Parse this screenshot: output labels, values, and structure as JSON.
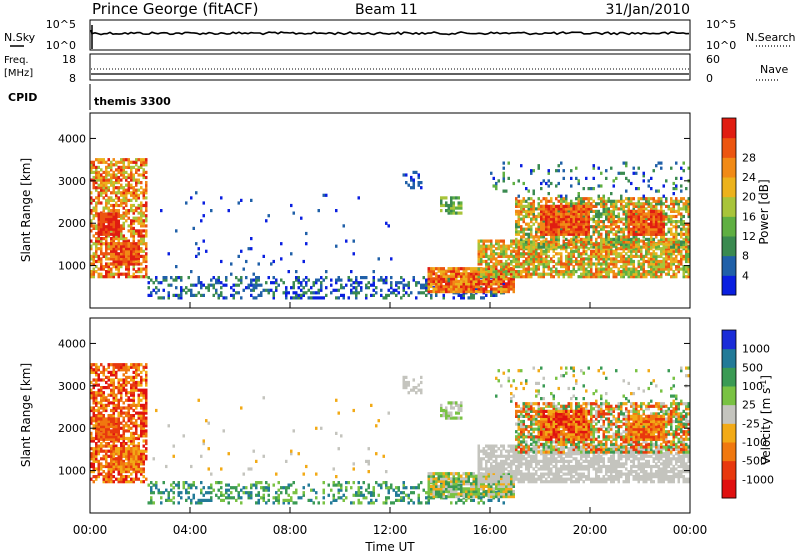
{
  "header": {
    "title": "Prince George (fitACF)",
    "beam": "Beam 11",
    "date": "31/Jan/2010"
  },
  "sky_panel": {
    "left_label": "N.Sky",
    "left_ticks": [
      "10^5",
      "10^0"
    ],
    "right_ticks": [
      "10^5",
      "10^0"
    ],
    "right_label": "N.Search"
  },
  "freq_panel": {
    "left_label_1": "Freq.",
    "left_label_2": "[MHz]",
    "left_ticks": [
      "18",
      "8"
    ],
    "right_ticks": [
      "60",
      "0"
    ],
    "right_label": "Nave"
  },
  "cpid": {
    "label": "CPID",
    "value": "themis 3300"
  },
  "chart_data": [
    {
      "type": "heatmap",
      "panel": "power",
      "ylabel": "Slant Range [km]",
      "yticks": [
        "1000",
        "2000",
        "3000",
        "4000"
      ],
      "colorbar": {
        "label": "Power [dB]",
        "ticks": [
          "4",
          "8",
          "12",
          "16",
          "20",
          "24",
          "28"
        ],
        "colors": [
          "#0a1fe0",
          "#2060a8",
          "#3a8a50",
          "#5faf42",
          "#a8c43a",
          "#ecb21c",
          "#f18a16",
          "#ec5510",
          "#e01d12"
        ]
      }
    },
    {
      "type": "heatmap",
      "panel": "velocity",
      "ylabel": "Slant Range [km]",
      "yticks": [
        "1000",
        "2000",
        "3000",
        "4000"
      ],
      "colorbar": {
        "label": "Velocity [m s",
        "label_sup": "-1",
        "label_end": "]",
        "ticks": [
          "1000",
          "500",
          "100",
          "25",
          "-25",
          "-100",
          "-500",
          "-1000"
        ],
        "colors": [
          "#1a2cd8",
          "#227a98",
          "#3a9a54",
          "#79c243",
          "#c4c4be",
          "#f2aa16",
          "#f0780f",
          "#e8380e",
          "#e01010"
        ]
      }
    }
  ],
  "x_axis": {
    "ticks": [
      "00:00",
      "04:00",
      "08:00",
      "12:00",
      "16:00",
      "20:00",
      "00:00"
    ],
    "label": "Time UT"
  }
}
